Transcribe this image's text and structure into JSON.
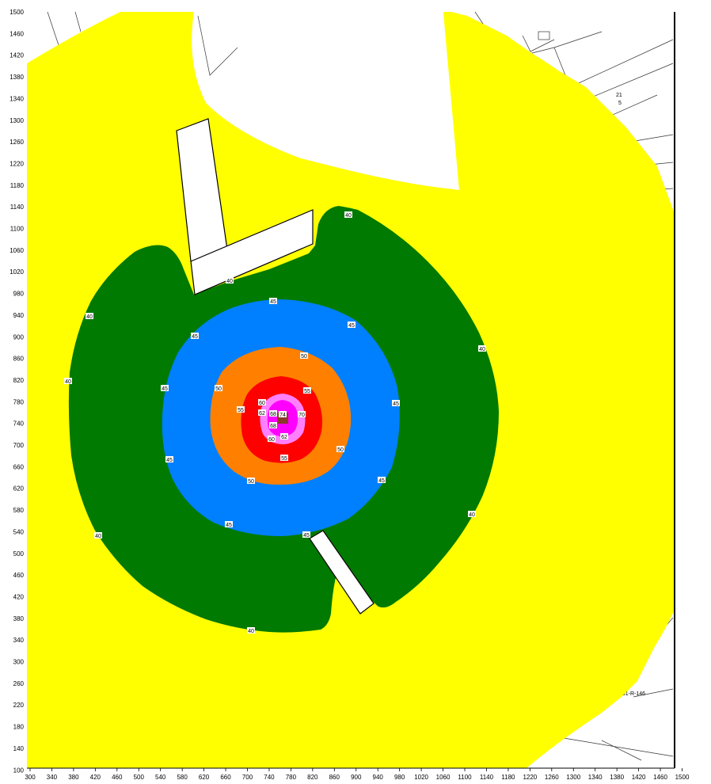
{
  "map": {
    "x_ticks": [
      "300",
      "340",
      "380",
      "420",
      "460",
      "500",
      "540",
      "580",
      "620",
      "660",
      "700",
      "740",
      "780",
      "820",
      "860",
      "900",
      "940",
      "980",
      "1020",
      "1060",
      "1100",
      "1140",
      "1180",
      "1220",
      "1260",
      "1300",
      "1340",
      "1380",
      "1420",
      "1460",
      "1500"
    ],
    "y_ticks": [
      "1500",
      "1460",
      "1420",
      "1380",
      "1340",
      "1300",
      "1260",
      "1220",
      "1180",
      "1140",
      "1100",
      "1060",
      "1020",
      "980",
      "940",
      "900",
      "860",
      "820",
      "780",
      "740",
      "700",
      "660",
      "620",
      "580",
      "540",
      "500",
      "460",
      "420",
      "380",
      "340",
      "300",
      "260",
      "220",
      "180",
      "140",
      "100"
    ],
    "background_sketch_text": [
      "21",
      "5",
      "991-R-146"
    ],
    "zone_colors": {
      "z40": "#ffff00",
      "z45": "#007a00",
      "z50": "#0080ff",
      "z55": "#ff8000",
      "z60": "#ff0000",
      "z65": "#ff80ff",
      "z70": "#ff00ff",
      "source": "#8b3a2a"
    },
    "contour_labels": [
      {
        "text": "40"
      },
      {
        "text": "40"
      },
      {
        "text": "40"
      },
      {
        "text": "40"
      },
      {
        "text": "40"
      },
      {
        "text": "40"
      },
      {
        "text": "40"
      },
      {
        "text": "40"
      },
      {
        "text": "45"
      },
      {
        "text": "45"
      },
      {
        "text": "45"
      },
      {
        "text": "45"
      },
      {
        "text": "45"
      },
      {
        "text": "45"
      },
      {
        "text": "45"
      },
      {
        "text": "45"
      },
      {
        "text": "45"
      },
      {
        "text": "50"
      },
      {
        "text": "50"
      },
      {
        "text": "50"
      },
      {
        "text": "50"
      },
      {
        "text": "55"
      },
      {
        "text": "55"
      },
      {
        "text": "55"
      },
      {
        "text": "60"
      },
      {
        "text": "60"
      },
      {
        "text": "62"
      },
      {
        "text": "62"
      },
      {
        "text": "68"
      },
      {
        "text": "68"
      },
      {
        "text": "74"
      },
      {
        "text": "70"
      }
    ]
  }
}
